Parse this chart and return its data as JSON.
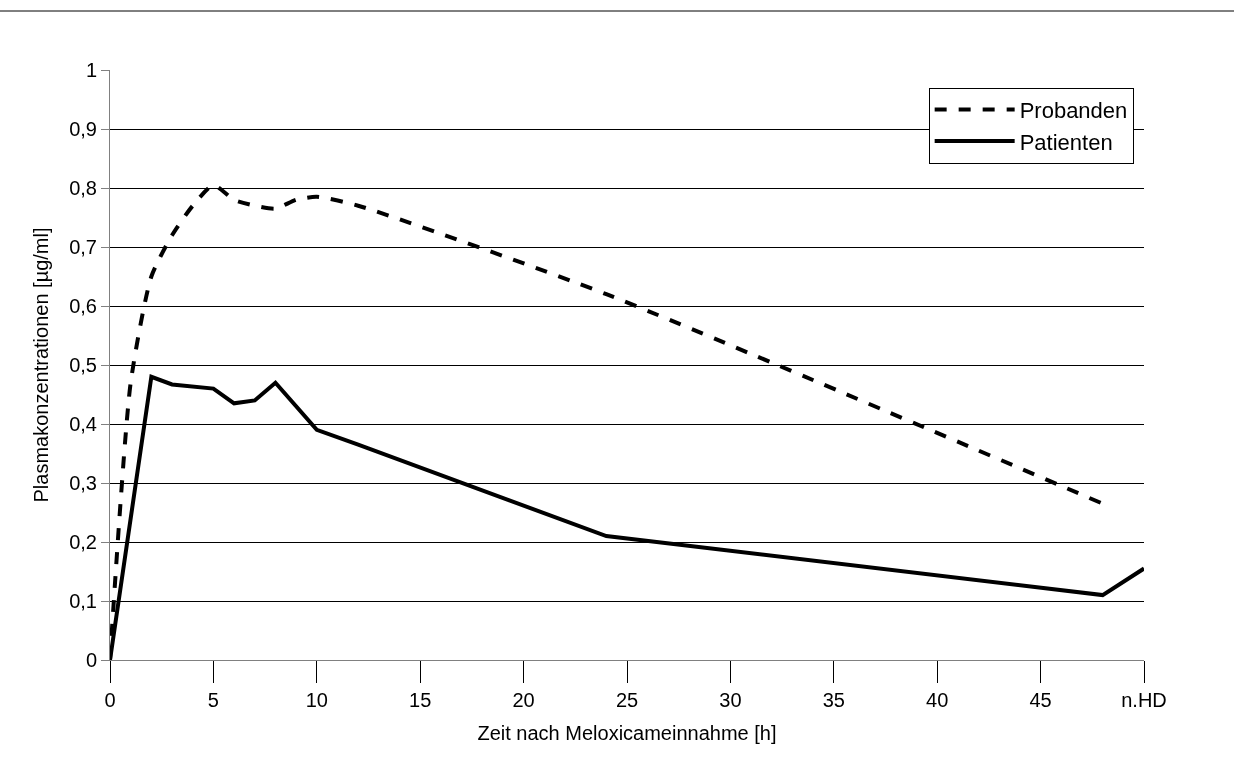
{
  "chart_data": {
    "type": "line",
    "xlabel": "Zeit nach Meloxicameinnahme [h]",
    "ylabel": "Plasmakonzentrationen [µg/ml]",
    "xlim": [
      0,
      50
    ],
    "xticks": [
      0,
      5,
      10,
      15,
      20,
      25,
      30,
      35,
      40,
      45,
      {
        "value": 50,
        "label": "n.HD"
      }
    ],
    "ylim": [
      0,
      1
    ],
    "yticks": [
      {
        "value": 0,
        "label": "0"
      },
      {
        "value": 0.1,
        "label": "0,1"
      },
      {
        "value": 0.2,
        "label": "0,2"
      },
      {
        "value": 0.3,
        "label": "0,3"
      },
      {
        "value": 0.4,
        "label": "0,4"
      },
      {
        "value": 0.5,
        "label": "0,5"
      },
      {
        "value": 0.6,
        "label": "0,6"
      },
      {
        "value": 0.7,
        "label": "0,7"
      },
      {
        "value": 0.8,
        "label": "0,8"
      },
      {
        "value": 0.9,
        "label": "0,9"
      },
      {
        "value": 1,
        "label": "1"
      }
    ],
    "grid": "y",
    "legend": "top right",
    "marker": "none",
    "series": [
      {
        "name": "Probanden",
        "color": "#000000",
        "line_style": "dashed",
        "x": [
          0,
          1,
          2,
          3,
          4,
          5,
          6,
          7,
          8,
          9,
          10,
          12,
          24,
          48
        ],
        "values": [
          0,
          0.47,
          0.65,
          0.72,
          0.77,
          0.805,
          0.78,
          0.77,
          0.765,
          0.78,
          0.785,
          0.77,
          0.62,
          0.265
        ]
      },
      {
        "name": "Patienten",
        "color": "#000000",
        "line_style": "solid",
        "x": [
          0,
          2,
          3,
          5,
          6,
          7,
          8,
          10,
          12,
          24,
          48,
          50
        ],
        "values": [
          0,
          0.48,
          0.467,
          0.46,
          0.435,
          0.44,
          0.47,
          0.39,
          0.365,
          0.21,
          0.11,
          0.155
        ]
      }
    ]
  }
}
